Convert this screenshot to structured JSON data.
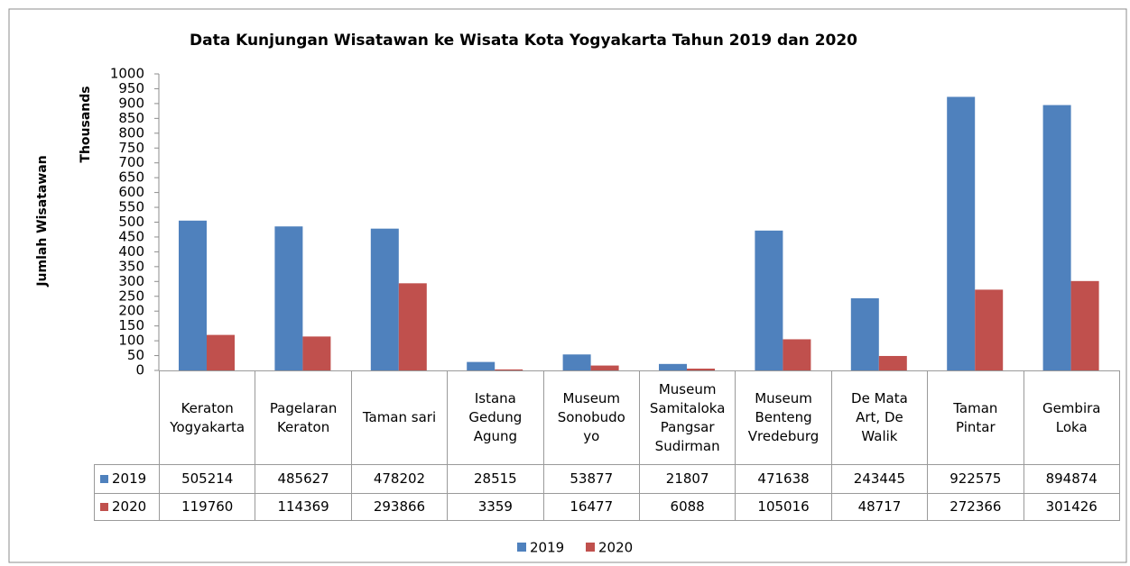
{
  "chart_data": {
    "type": "bar",
    "title": "Data Kunjungan  Wisatawan ke Wisata Kota Yogyakarta Tahun  2019 dan 2020",
    "y_label": "Jumlah Wisatawan",
    "y_unit_label": "Thousands",
    "categories": [
      "Keraton\nYogyakarta",
      "Pagelaran\nKeraton",
      "Taman sari",
      "Istana\nGedung\nAgung",
      "Museum\nSonobudo\nyo",
      "Museum\nSamitaloka\nPangsar\nSudirman",
      "Museum\nBenteng\nVredeburg",
      "De Mata\nArt, De\nWalik",
      "Taman\nPintar",
      "Gembira\nLoka"
    ],
    "series": [
      {
        "name": "2019",
        "color": "#4f81bd",
        "values": [
          505.214,
          485.627,
          478.202,
          28.515,
          53.877,
          21.807,
          471.638,
          243.445,
          922.575,
          894.874
        ],
        "value_labels": [
          "505214",
          "485627",
          "478202",
          "28515",
          "53877",
          "21807",
          "471638",
          "243445",
          "922575",
          "894874"
        ]
      },
      {
        "name": "2020",
        "color": "#c0504d",
        "values": [
          119.76,
          114.369,
          293.866,
          3.359,
          16.477,
          6.088,
          105.016,
          48.717,
          272.366,
          301.426
        ],
        "value_labels": [
          "119760",
          "114369",
          "293866",
          "3359",
          "16477",
          "6088",
          "105016",
          "48717",
          "272366",
          "301426"
        ]
      }
    ],
    "ylim": [
      0,
      1000
    ],
    "yticks": [
      0,
      50,
      100,
      150,
      200,
      250,
      300,
      350,
      400,
      450,
      500,
      550,
      600,
      650,
      700,
      750,
      800,
      850,
      900,
      950,
      1000
    ],
    "grid": false,
    "legend": "bottom"
  }
}
